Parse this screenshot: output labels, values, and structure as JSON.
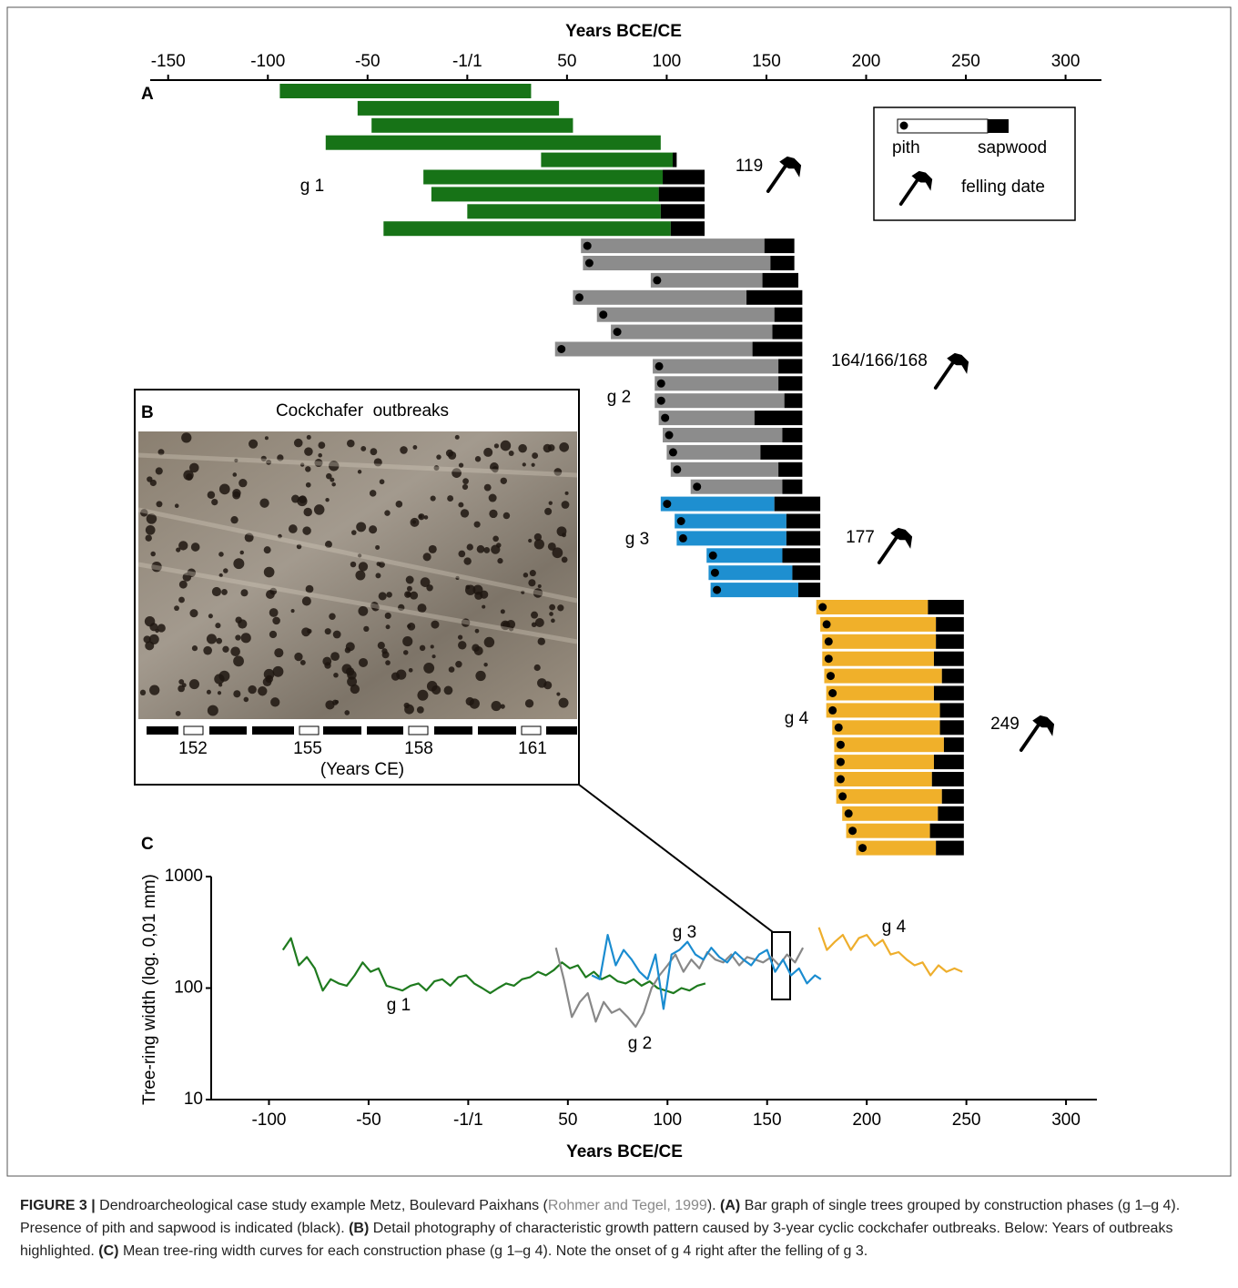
{
  "chart_data": [
    {
      "type": "gantt",
      "panel": "A",
      "xlabel": "Years BCE/CE",
      "xlim": [
        -159,
        318
      ],
      "xticks": [
        -150,
        -100,
        -50,
        {
          "value": 0,
          "label": "-1/1"
        },
        50,
        100,
        150,
        200,
        250,
        300
      ],
      "legend_labels": [
        "pith",
        "sapwood",
        "felling date"
      ],
      "series": [
        {
          "name": "g 1",
          "color": "#177317",
          "pith": false,
          "felling": 119,
          "start": [
            -94,
            -55,
            -48,
            -71,
            37,
            -22,
            -18,
            0,
            -42
          ],
          "sapwood": [
            null,
            null,
            null,
            null,
            103,
            98,
            96,
            97,
            102
          ],
          "end": [
            32,
            46,
            53,
            97,
            105,
            119,
            119,
            119,
            119
          ]
        },
        {
          "name": "g 2",
          "color": "#8c8c8c",
          "pith": true,
          "felling": "164/166/168",
          "start": [
            57,
            58,
            92,
            53,
            65,
            72,
            44,
            93,
            94,
            94,
            96,
            98,
            100,
            102,
            112
          ],
          "sapwood": [
            149,
            152,
            148,
            140,
            154,
            153,
            143,
            156,
            156,
            159,
            144,
            158,
            147,
            156,
            158
          ],
          "end": [
            164,
            164,
            166,
            168,
            168,
            168,
            168,
            168,
            168,
            168,
            168,
            168,
            168,
            168,
            168
          ]
        },
        {
          "name": "g 3",
          "color": "#1e8fd0",
          "pith": true,
          "felling": 177,
          "start": [
            97,
            104,
            105,
            120,
            121,
            122
          ],
          "sapwood": [
            154,
            160,
            160,
            158,
            163,
            166
          ],
          "end": [
            177,
            177,
            177,
            177,
            177,
            177
          ]
        },
        {
          "name": "g 4",
          "color": "#f0b02a",
          "pith": true,
          "felling": 249,
          "start": [
            175,
            177,
            178,
            178,
            179,
            180,
            180,
            183,
            184,
            184,
            184,
            185,
            188,
            190,
            195
          ],
          "sapwood": [
            231,
            235,
            235,
            234,
            238,
            234,
            237,
            237,
            239,
            234,
            233,
            238,
            236,
            232,
            235
          ],
          "end": [
            249,
            249,
            249,
            249,
            249,
            249,
            249,
            249,
            249,
            249,
            249,
            249,
            249,
            249,
            249
          ]
        }
      ]
    },
    {
      "type": "line",
      "panel": "C",
      "xlabel": "Years BCE/CE",
      "ylabel": "Tree-ring width (log. 0,01 mm)",
      "xlim": [
        -129,
        315.5
      ],
      "xticks": [
        -100,
        -50,
        {
          "value": 0,
          "label": "-1/1"
        },
        50,
        100,
        150,
        200,
        250,
        300
      ],
      "ylim": [
        10,
        1000
      ],
      "yticks": [
        10,
        100,
        1000
      ],
      "log_y": true,
      "series": [
        {
          "name": "g 1",
          "color": "#1e7a1e",
          "x": [
            -93,
            -89,
            -85,
            -81,
            -77,
            -73,
            -69,
            -65,
            -61,
            -57,
            -53,
            -49,
            -45,
            -41,
            -37,
            -33,
            -29,
            -25,
            -21,
            -17,
            -13,
            -9,
            -5,
            -1,
            3,
            7,
            11,
            15,
            19,
            23,
            27,
            31,
            35,
            39,
            43,
            47,
            51,
            55,
            59,
            63,
            67,
            71,
            75,
            79,
            83,
            87,
            91,
            95,
            99,
            103,
            107,
            111,
            115,
            119
          ],
          "values": [
            220,
            280,
            160,
            190,
            150,
            95,
            120,
            110,
            105,
            130,
            170,
            140,
            150,
            105,
            100,
            95,
            105,
            110,
            95,
            115,
            120,
            105,
            125,
            130,
            110,
            100,
            90,
            100,
            110,
            105,
            120,
            125,
            140,
            130,
            145,
            170,
            150,
            160,
            125,
            140,
            120,
            130,
            115,
            110,
            120,
            105,
            115,
            100,
            95,
            90,
            100,
            95,
            105,
            110
          ]
        },
        {
          "name": "g 2",
          "color": "#888888",
          "x": [
            44,
            48,
            52,
            56,
            60,
            64,
            68,
            72,
            76,
            80,
            84,
            88,
            92,
            96,
            100,
            104,
            108,
            112,
            116,
            120,
            124,
            128,
            132,
            136,
            140,
            144,
            148,
            152,
            156,
            160,
            164,
            168
          ],
          "values": [
            230,
            120,
            55,
            75,
            90,
            50,
            75,
            60,
            65,
            55,
            45,
            60,
            100,
            130,
            160,
            200,
            140,
            180,
            150,
            210,
            180,
            170,
            200,
            160,
            190,
            180,
            170,
            190,
            160,
            200,
            170,
            230
          ]
        },
        {
          "name": "g 3",
          "color": "#1a8cd0",
          "x": [
            62,
            66,
            70,
            74,
            78,
            82,
            86,
            90,
            94,
            98,
            102,
            106,
            110,
            114,
            118,
            122,
            126,
            130,
            134,
            138,
            142,
            146,
            150,
            154,
            158,
            162,
            166,
            170,
            174,
            177
          ],
          "values": [
            130,
            120,
            300,
            160,
            220,
            180,
            140,
            120,
            200,
            65,
            200,
            220,
            260,
            200,
            180,
            230,
            190,
            170,
            210,
            180,
            160,
            200,
            220,
            140,
            180,
            130,
            150,
            110,
            130,
            120
          ]
        },
        {
          "name": "g 4",
          "color": "#eeae2c",
          "x": [
            176,
            180,
            184,
            188,
            192,
            196,
            200,
            204,
            208,
            212,
            216,
            220,
            224,
            228,
            232,
            236,
            240,
            244,
            248
          ],
          "values": [
            350,
            220,
            260,
            300,
            220,
            280,
            300,
            240,
            270,
            200,
            210,
            180,
            160,
            170,
            130,
            160,
            140,
            150,
            140
          ]
        }
      ]
    }
  ],
  "panel_b": {
    "panel": "B",
    "title": "Cockchafer  outbreaks",
    "years": [
      152,
      155,
      158,
      161
    ],
    "axis_label": "(Years CE)"
  },
  "caption": {
    "label": "FIGURE 3 |",
    "text_1": " Dendroarcheological case study example Metz, Boulevard Paixhans (",
    "reference": "Rohmer and Tegel, 1999",
    "text_2": "). ",
    "a_label": "(A)",
    "a_text": " Bar graph of single trees grouped by construction phases (g 1–g 4). Presence of pith and sapwood is indicated (black). ",
    "b_label": "(B)",
    "b_text": " Detail photography of characteristic growth pattern caused by 3-year cyclic cockchafer outbreaks. Below: Years of outbreaks highlighted. ",
    "c_label": "(C)",
    "c_text": " Mean tree-ring width curves for each construction phase (g 1–g 4). Note the onset of g 4 right after the felling of g 3."
  }
}
